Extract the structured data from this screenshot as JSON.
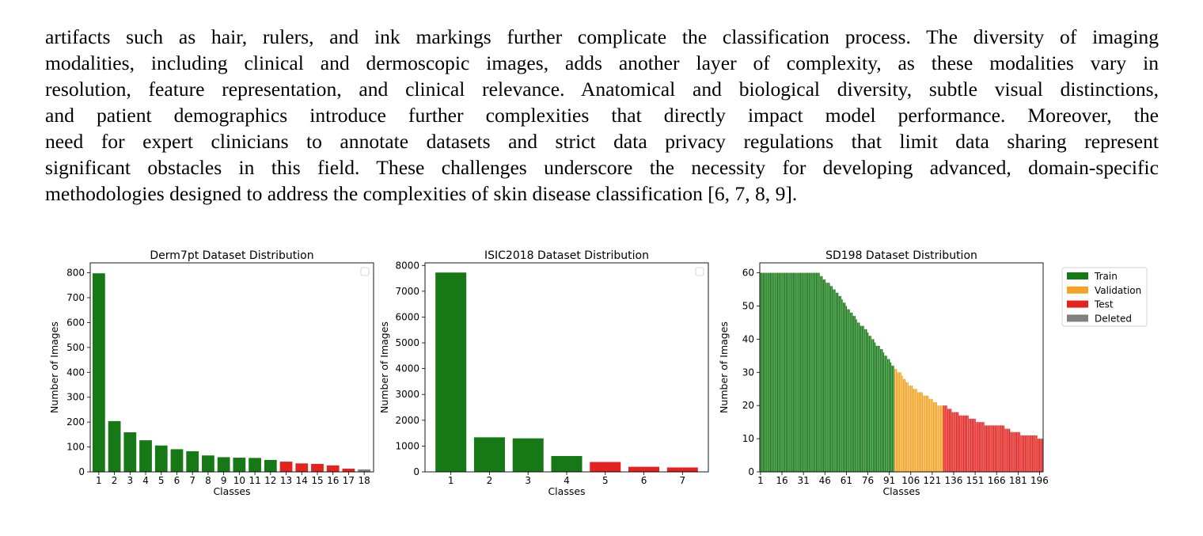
{
  "paragraph": {
    "lines": [
      "artifacts such as hair, rulers, and ink markings further complicate the classification process. The diversity of imaging",
      "modalities, including clinical and dermoscopic images, adds another layer of complexity, as these modalities vary in",
      "resolution, feature representation, and clinical relevance. Anatomical and biological diversity, subtle visual distinctions,",
      "and patient demographics introduce further complexities that directly impact model performance. Moreover, the",
      "need for expert clinicians to annotate datasets and strict data privacy regulations that limit data sharing represent",
      "significant obstacles in this field. These challenges underscore the necessity for developing advanced, domain-specific",
      "methodologies designed to address the complexities of skin disease classification [6, 7, 8, 9]."
    ]
  },
  "colors": {
    "Train": "#167916",
    "Validation": "#f2a426",
    "Test": "#e4221f",
    "Deleted": "#808080"
  },
  "legend": [
    {
      "label": "Train",
      "color": "#167916"
    },
    {
      "label": "Validation",
      "color": "#f2a426"
    },
    {
      "label": "Test",
      "color": "#e4221f"
    },
    {
      "label": "Deleted",
      "color": "#808080"
    }
  ],
  "chart_data": [
    {
      "type": "bar",
      "title": "Derm7pt Dataset Distribution",
      "xlabel": "Classes",
      "ylabel": "Number of Images",
      "ylim": [
        0,
        840
      ],
      "yticks": [
        0,
        100,
        200,
        300,
        400,
        500,
        600,
        700,
        800
      ],
      "categories": [
        "1",
        "2",
        "3",
        "4",
        "5",
        "6",
        "7",
        "8",
        "9",
        "10",
        "11",
        "12",
        "13",
        "14",
        "15",
        "16",
        "17",
        "18"
      ],
      "values": [
        798,
        204,
        159,
        127,
        106,
        91,
        83,
        66,
        59,
        57,
        56,
        48,
        41,
        34,
        32,
        26,
        13,
        10
      ],
      "splits": [
        "Train",
        "Train",
        "Train",
        "Train",
        "Train",
        "Train",
        "Train",
        "Train",
        "Train",
        "Train",
        "Train",
        "Train",
        "Test",
        "Test",
        "Test",
        "Test",
        "Test",
        "Deleted"
      ],
      "legend": "top-right, empty"
    },
    {
      "type": "bar",
      "title": "ISIC2018 Dataset Distribution",
      "xlabel": "Classes",
      "ylabel": "Number of Images",
      "ylim": [
        0,
        8100
      ],
      "yticks": [
        0,
        1000,
        2000,
        3000,
        4000,
        5000,
        6000,
        7000,
        8000
      ],
      "categories": [
        "1",
        "2",
        "3",
        "4",
        "5",
        "6",
        "7"
      ],
      "values": [
        7725,
        1339,
        1299,
        614,
        383,
        197,
        171
      ],
      "splits": [
        "Train",
        "Train",
        "Train",
        "Train",
        "Test",
        "Test",
        "Test"
      ],
      "legend": "top-right, empty"
    },
    {
      "type": "bar",
      "title": "SD198 Dataset Distribution",
      "xlabel": "Classes",
      "ylabel": "Number of Images",
      "ylim": [
        0,
        63
      ],
      "yticks": [
        0,
        10,
        20,
        30,
        40,
        50,
        60
      ],
      "xticks": [
        "1",
        "16",
        "31",
        "46",
        "61",
        "76",
        "91",
        "106",
        "121",
        "136",
        "151",
        "166",
        "181",
        "196"
      ],
      "class_count": 198,
      "values": [
        60,
        60,
        60,
        60,
        60,
        60,
        60,
        60,
        60,
        60,
        60,
        60,
        60,
        60,
        60,
        60,
        60,
        60,
        60,
        60,
        60,
        60,
        60,
        60,
        60,
        60,
        60,
        60,
        60,
        60,
        60,
        60,
        60,
        60,
        60,
        60,
        60,
        60,
        60,
        60,
        60,
        60,
        59,
        59,
        58,
        58,
        57,
        57,
        57,
        56,
        56,
        55,
        55,
        54,
        54,
        53,
        53,
        52,
        51,
        51,
        50,
        49,
        49,
        48,
        48,
        47,
        47,
        46,
        45,
        45,
        44,
        44,
        44,
        43,
        43,
        42,
        41,
        41,
        40,
        40,
        39,
        38,
        38,
        38,
        37,
        37,
        36,
        35,
        35,
        34,
        34,
        33,
        32,
        32,
        31,
        31,
        30,
        30,
        30,
        29,
        28,
        28,
        27,
        27,
        26,
        26,
        26,
        25,
        25,
        25,
        24,
        24,
        24,
        24,
        23,
        23,
        23,
        23,
        22,
        22,
        22,
        21,
        21,
        21,
        20,
        20,
        20,
        20,
        20,
        20,
        20,
        19,
        19,
        19,
        18,
        18,
        18,
        18,
        18,
        17,
        17,
        17,
        17,
        17,
        17,
        17,
        16,
        16,
        16,
        16,
        16,
        15,
        15,
        15,
        15,
        15,
        15,
        14,
        14,
        14,
        14,
        14,
        14,
        14,
        14,
        14,
        14,
        14,
        14,
        14,
        14,
        13,
        13,
        13,
        13,
        12,
        12,
        12,
        12,
        12,
        12,
        12,
        11,
        11,
        11,
        11,
        11,
        11,
        11,
        11,
        11,
        11,
        11,
        11,
        10,
        10,
        10,
        10
      ],
      "split_ranges": {
        "Train": [
          1,
          94
        ],
        "Validation": [
          95,
          128
        ],
        "Test": [
          129,
          198
        ]
      }
    }
  ]
}
